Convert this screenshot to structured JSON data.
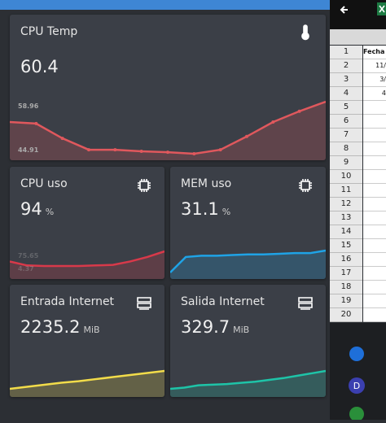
{
  "cards": [
    {
      "title": "CPU Temp",
      "value": "60.4",
      "graph": {
        "color": "#e0585d",
        "values": [
          53.9,
          53.4,
          48.6,
          44.9,
          44.9,
          44.4,
          44.1,
          43.6,
          44.9,
          49.2,
          53.9,
          57.4,
          60.5
        ],
        "labels": [
          "58.96",
          "44.91"
        ]
      }
    },
    {
      "title": "CPU uso",
      "value": "94",
      "unit": "%",
      "graph": {
        "color": "#d8394a",
        "values": [
          22,
          15,
          14,
          14,
          14,
          15,
          16,
          22,
          30,
          40
        ],
        "labels": [
          "75.65",
          "4.37"
        ]
      }
    },
    {
      "title": "MEM uso",
      "value": "31.1",
      "unit": "%",
      "graph": {
        "color": "#1fa3e6",
        "values": [
          29.6,
          30.8,
          30.9,
          30.9,
          30.95,
          31.0,
          31.0,
          31.05,
          31.1,
          31.1,
          31.3
        ]
      }
    },
    {
      "title": "Entrada Internet",
      "value": "2235.2",
      "unit": "MiB",
      "graph": {
        "color": "#f2dc4a",
        "values": [
          2200,
          2204,
          2208,
          2212,
          2215,
          2219,
          2223,
          2227,
          2231,
          2235
        ]
      }
    },
    {
      "title": "Salida Internet",
      "value": "329.7",
      "unit": "MiB",
      "graph": {
        "color": "#1ec4a8",
        "values": [
          300,
          302,
          306,
          307,
          308,
          310,
          312,
          315,
          318,
          322,
          326,
          330
        ]
      }
    }
  ],
  "spreadsheet": {
    "rows": [
      "1",
      "2",
      "3",
      "4",
      "5",
      "6",
      "7",
      "8",
      "9",
      "10",
      "11",
      "12",
      "13",
      "14",
      "15",
      "16",
      "17",
      "18",
      "19",
      "20"
    ],
    "cells": [
      "Fecha",
      "11/",
      "3/",
      "4"
    ]
  }
}
